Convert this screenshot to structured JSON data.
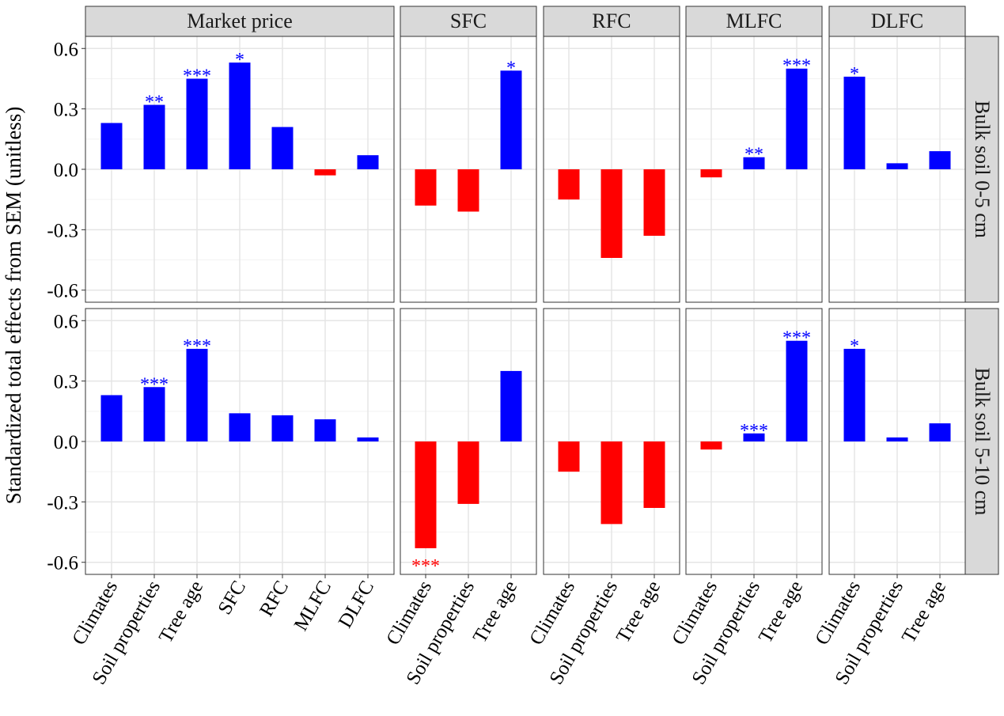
{
  "chart_data": {
    "type": "bar",
    "ylabel": "Standardized total effects from SEM (unitless)",
    "ylim": [
      -0.66,
      0.66
    ],
    "yticks": [
      "-0.6",
      "-0.3",
      "0.0",
      "0.3",
      "0.6"
    ],
    "ytick_values": [
      -0.6,
      -0.3,
      0.0,
      0.3,
      0.6
    ],
    "colors": {
      "positive": "#0000FF",
      "negative": "#FF0000"
    },
    "rows": [
      "Bulk soil 0-5 cm",
      "Bulk soil 5-10 cm"
    ],
    "columns": [
      {
        "name": "Market price",
        "categories": [
          "Climates",
          "Soil properties",
          "Tree age",
          "SFC",
          "RFC",
          "MLFC",
          "DLFC"
        ]
      },
      {
        "name": "SFC",
        "categories": [
          "Climates",
          "Soil properties",
          "Tree age"
        ]
      },
      {
        "name": "RFC",
        "categories": [
          "Climates",
          "Soil properties",
          "Tree age"
        ]
      },
      {
        "name": "MLFC",
        "categories": [
          "Climates",
          "Soil properties",
          "Tree age"
        ]
      },
      {
        "name": "DLFC",
        "categories": [
          "Climates",
          "Soil properties",
          "Tree age"
        ]
      }
    ],
    "values": [
      [
        [
          0.23,
          0.32,
          0.45,
          0.53,
          0.21,
          -0.03,
          0.07
        ],
        [
          -0.18,
          -0.21,
          0.49
        ],
        [
          -0.15,
          -0.44,
          -0.33
        ],
        [
          -0.04,
          0.06,
          0.5
        ],
        [
          0.46,
          0.03,
          0.09
        ]
      ],
      [
        [
          0.23,
          0.27,
          0.46,
          0.14,
          0.13,
          0.11,
          0.02
        ],
        [
          -0.53,
          -0.31,
          0.35
        ],
        [
          -0.15,
          -0.41,
          -0.33
        ],
        [
          -0.04,
          0.04,
          0.5
        ],
        [
          0.46,
          0.02,
          0.09
        ]
      ]
    ],
    "significance": [
      [
        [
          "",
          "**",
          "***",
          "*",
          "",
          "",
          ""
        ],
        [
          "",
          "",
          "*"
        ],
        [
          "",
          "",
          ""
        ],
        [
          "",
          "**",
          "***"
        ],
        [
          "*",
          "",
          ""
        ]
      ],
      [
        [
          "",
          "***",
          "***",
          "",
          "",
          "",
          ""
        ],
        [
          "***",
          "",
          ""
        ],
        [
          "",
          "",
          ""
        ],
        [
          "",
          "***",
          "***"
        ],
        [
          "*",
          "",
          ""
        ]
      ]
    ]
  }
}
